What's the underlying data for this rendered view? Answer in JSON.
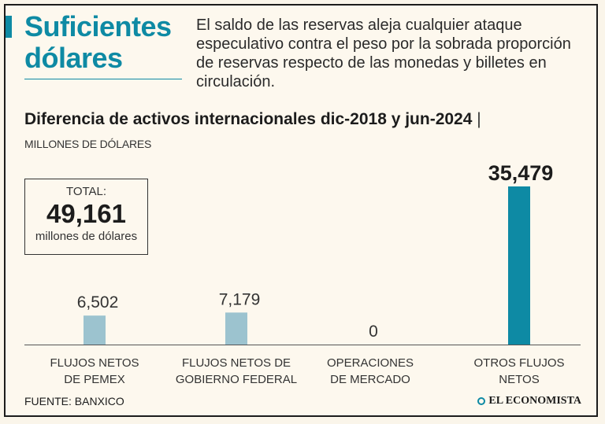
{
  "headline": {
    "line1": "Suficientes",
    "line2": "dólares"
  },
  "lede": "El saldo de las reservas aleja cualquier ataque especulativo contra el peso por la sobrada proporción de reservas respecto de las monedas y billetes en circulación.",
  "chart_data": {
    "type": "bar",
    "title": "Diferencia de activos internacionales dic-2018 y jun-2024",
    "title_separator": "|",
    "units": "MILLONES DE DÓLARES",
    "categories": [
      [
        "FLUJOS NETOS",
        "DE PEMEX"
      ],
      [
        "FLUJOS NETOS DE",
        "GOBIERNO FEDERAL"
      ],
      [
        "OPERACIONES",
        "DE MERCADO"
      ],
      [
        "OTROS FLUJOS",
        "NETOS"
      ]
    ],
    "values": [
      6502,
      7179,
      0,
      35479
    ],
    "value_labels": [
      "6,502",
      "7,179",
      "0",
      "35,479"
    ],
    "highlight_index": 3,
    "ylim": [
      0,
      35479
    ],
    "colors": {
      "bar": "#9cc3cf",
      "highlight": "#0e8aa4",
      "axis": "#555555",
      "text": "#333333"
    }
  },
  "total": {
    "label": "TOTAL:",
    "value": "49,161",
    "unit": "millones de dólares"
  },
  "footer": {
    "source": "FUENTE: BANXICO",
    "brand": "EL ECONOMISTA"
  }
}
